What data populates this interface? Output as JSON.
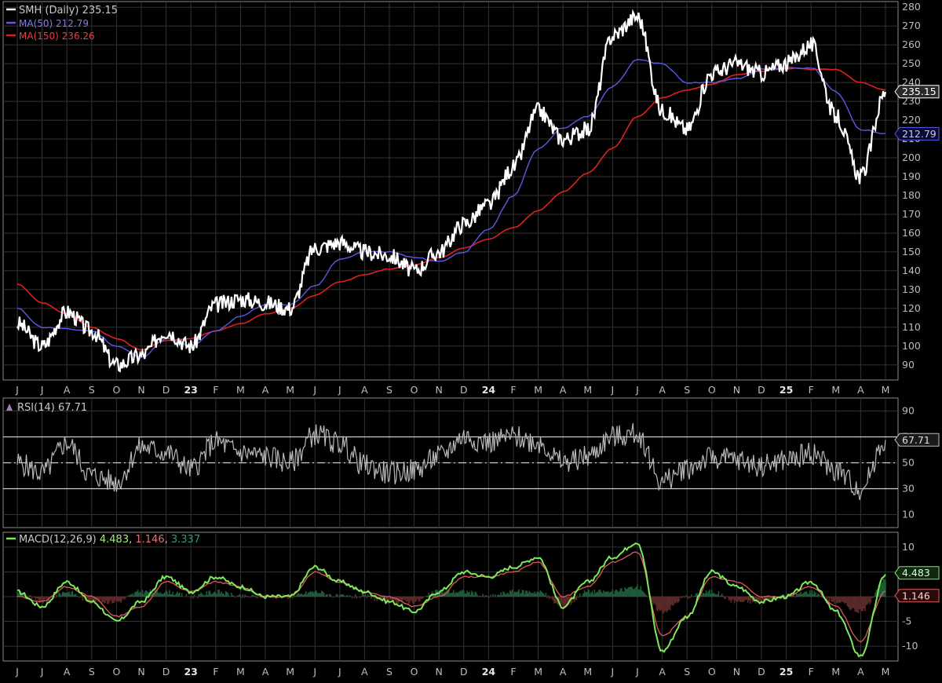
{
  "colors": {
    "background": "#000000",
    "grid": "#333333",
    "price": "#ffffff",
    "ma50": "#5a5ae8",
    "ma150": "#e02020",
    "rsi": "#b8b8b8",
    "macd": "#7ee85a",
    "signal": "#e05a5a",
    "hist_pos": "#1f5a3a",
    "hist_neg": "#5a2a2a"
  },
  "legend": {
    "price": {
      "label": "SMH (Daily)",
      "value": "235.15"
    },
    "ma50": {
      "label": "MA(50)",
      "value": "212.79"
    },
    "ma150": {
      "label": "MA(150)",
      "value": "236.26"
    },
    "rsi": {
      "label": "RSI(14)",
      "value": "67.71"
    },
    "macd": {
      "label": "MACD(12,26,9)",
      "v1": "4.483",
      "sep1": ",",
      "v2": "1.146",
      "sep2": ",",
      "v3": "3.337"
    }
  },
  "tags": {
    "price": "235.15",
    "ma50": "212.79",
    "rsi": "67.71",
    "macd": "4.483",
    "signal": "1.146"
  },
  "x_labels": [
    "J",
    "J",
    "A",
    "S",
    "O",
    "N",
    "D",
    "23",
    "F",
    "M",
    "A",
    "M",
    "J",
    "J",
    "A",
    "S",
    "O",
    "N",
    "D",
    "24",
    "F",
    "M",
    "A",
    "M",
    "J",
    "J",
    "A",
    "S",
    "O",
    "N",
    "D",
    "25",
    "F",
    "M",
    "A",
    "M"
  ],
  "chart_data": [
    {
      "type": "line",
      "title": "SMH (Daily) 235.15",
      "x": [
        "2022-06",
        "2022-07",
        "2022-08",
        "2022-09",
        "2022-10",
        "2022-11",
        "2022-12",
        "2023-01",
        "2023-02",
        "2023-03",
        "2023-04",
        "2023-05",
        "2023-06",
        "2023-07",
        "2023-08",
        "2023-09",
        "2023-10",
        "2023-11",
        "2023-12",
        "2024-01",
        "2024-02",
        "2024-03",
        "2024-04",
        "2024-05",
        "2024-06",
        "2024-07",
        "2024-08",
        "2024-09",
        "2024-10",
        "2024-11",
        "2024-12",
        "2025-01",
        "2025-02",
        "2025-03",
        "2025-04",
        "2025-05"
      ],
      "x_tick_labels": [
        "J",
        "J",
        "A",
        "S",
        "O",
        "N",
        "D",
        "23",
        "F",
        "M",
        "A",
        "M",
        "J",
        "J",
        "A",
        "S",
        "O",
        "N",
        "D",
        "24",
        "F",
        "M",
        "A",
        "M",
        "J",
        "J",
        "A",
        "S",
        "O",
        "N",
        "D",
        "25",
        "F",
        "M",
        "A",
        "M"
      ],
      "ylim": [
        82,
        283
      ],
      "yticks": [
        90,
        100,
        110,
        120,
        130,
        140,
        150,
        160,
        170,
        180,
        190,
        200,
        210,
        220,
        230,
        240,
        250,
        260,
        270,
        280
      ],
      "grid": true,
      "legend_position": "top-left",
      "series": [
        {
          "name": "SMH (Daily)",
          "values": [
            112,
            100,
            118,
            108,
            90,
            95,
            108,
            100,
            122,
            125,
            123,
            120,
            152,
            155,
            150,
            148,
            140,
            150,
            165,
            175,
            195,
            225,
            210,
            215,
            265,
            275,
            225,
            215,
            245,
            250,
            245,
            250,
            260,
            222,
            190,
            235
          ]
        },
        {
          "name": "MA(50)",
          "values": [
            120,
            110,
            109,
            108,
            100,
            94,
            104,
            100,
            108,
            116,
            122,
            122,
            132,
            146,
            150,
            150,
            147,
            145,
            150,
            162,
            180,
            205,
            216,
            222,
            238,
            252,
            250,
            240,
            240,
            242,
            247,
            247,
            248,
            235,
            215,
            213
          ]
        },
        {
          "name": "MA(150)",
          "values": [
            133,
            123,
            117,
            110,
            104,
            98,
            103,
            104,
            108,
            112,
            117,
            120,
            127,
            134,
            138,
            141,
            143,
            147,
            152,
            157,
            163,
            172,
            182,
            192,
            205,
            222,
            232,
            236,
            239,
            244,
            246,
            248,
            247,
            247,
            240,
            236
          ]
        }
      ]
    },
    {
      "type": "line",
      "title": "RSI(14) 67.71",
      "x": [
        "2022-06",
        "2022-07",
        "2022-08",
        "2022-09",
        "2022-10",
        "2022-11",
        "2022-12",
        "2023-01",
        "2023-02",
        "2023-03",
        "2023-04",
        "2023-05",
        "2023-06",
        "2023-07",
        "2023-08",
        "2023-09",
        "2023-10",
        "2023-11",
        "2023-12",
        "2024-01",
        "2024-02",
        "2024-03",
        "2024-04",
        "2024-05",
        "2024-06",
        "2024-07",
        "2024-08",
        "2024-09",
        "2024-10",
        "2024-11",
        "2024-12",
        "2025-01",
        "2025-02",
        "2025-03",
        "2025-04",
        "2025-05"
      ],
      "ylim": [
        0,
        100
      ],
      "yticks": [
        10,
        30,
        50,
        70,
        90
      ],
      "reference_lines": [
        30,
        50,
        70
      ],
      "series": [
        {
          "name": "RSI(14)",
          "values": [
            50,
            42,
            65,
            40,
            35,
            62,
            58,
            45,
            66,
            58,
            55,
            50,
            72,
            65,
            48,
            42,
            44,
            55,
            70,
            66,
            70,
            66,
            50,
            55,
            70,
            72,
            35,
            46,
            54,
            52,
            48,
            52,
            58,
            44,
            30,
            67.71
          ]
        }
      ]
    },
    {
      "type": "line",
      "title": "MACD(12,26,9) 4.483, 1.146, 3.337",
      "x": [
        "2022-06",
        "2022-07",
        "2022-08",
        "2022-09",
        "2022-10",
        "2022-11",
        "2022-12",
        "2023-01",
        "2023-02",
        "2023-03",
        "2023-04",
        "2023-05",
        "2023-06",
        "2023-07",
        "2023-08",
        "2023-09",
        "2023-10",
        "2023-11",
        "2023-12",
        "2024-01",
        "2024-02",
        "2024-03",
        "2024-04",
        "2024-05",
        "2024-06",
        "2024-07",
        "2024-08",
        "2024-09",
        "2024-10",
        "2024-11",
        "2024-12",
        "2025-01",
        "2025-02",
        "2025-03",
        "2025-04",
        "2025-05"
      ],
      "ylim": [
        -13,
        13
      ],
      "yticks": [
        -10,
        -5,
        0,
        5,
        10
      ],
      "series": [
        {
          "name": "MACD",
          "values": [
            1,
            -2,
            3,
            -1,
            -5,
            -1,
            4,
            1,
            4,
            2,
            0,
            0,
            6,
            3,
            1,
            -1,
            -3,
            1,
            5,
            4,
            6,
            8,
            -2,
            3,
            8,
            11,
            -11,
            -4,
            5,
            2,
            -1,
            0,
            3,
            -3,
            -12,
            4.483
          ]
        },
        {
          "name": "Signal",
          "values": [
            0,
            -1,
            2,
            0,
            -4,
            -2,
            3,
            1,
            3,
            2,
            0,
            0,
            5,
            3,
            1,
            0,
            -2,
            0,
            4,
            4,
            5,
            7,
            0,
            2,
            7,
            9,
            -8,
            -4,
            4,
            3,
            0,
            0,
            2,
            -2,
            -9,
            1.146
          ]
        },
        {
          "name": "Histogram",
          "values": [
            1,
            -1,
            1,
            -1,
            -1,
            1,
            1,
            0,
            1,
            0,
            0,
            0,
            1,
            0,
            0,
            -1,
            -1,
            1,
            1,
            0,
            1,
            1,
            -2,
            1,
            1,
            2,
            -3,
            0,
            1,
            -1,
            -1,
            0,
            1,
            -1,
            -3,
            3.337
          ]
        }
      ]
    }
  ]
}
